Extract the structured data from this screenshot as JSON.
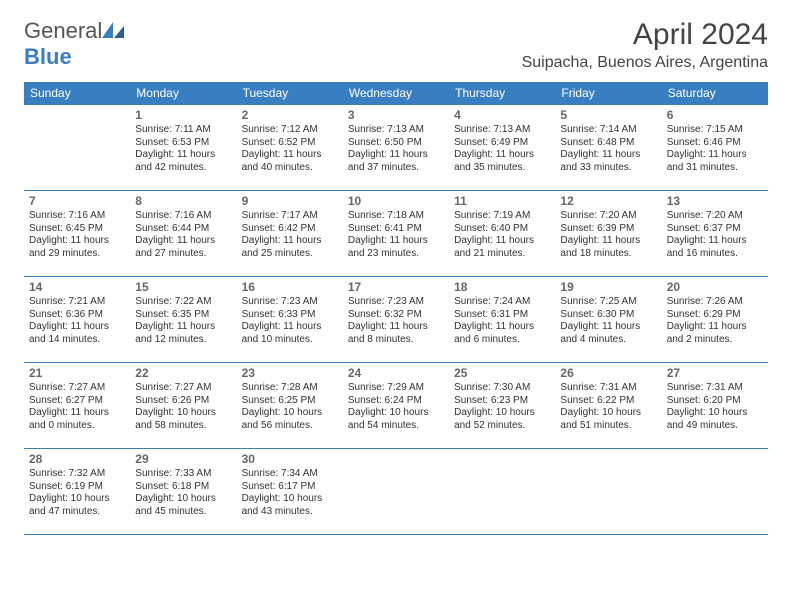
{
  "logo": {
    "text1": "General",
    "text2": "Blue",
    "icon_color": "#3a7ec2"
  },
  "title": "April 2024",
  "location": "Suipacha, Buenos Aires, Argentina",
  "header_bg": "#3a7ec2",
  "border_color": "#3a7ec2",
  "weekdays": [
    "Sunday",
    "Monday",
    "Tuesday",
    "Wednesday",
    "Thursday",
    "Friday",
    "Saturday"
  ],
  "weeks": [
    [
      null,
      {
        "d": "1",
        "sr": "7:11 AM",
        "ss": "6:53 PM",
        "dl": "11 hours and 42 minutes."
      },
      {
        "d": "2",
        "sr": "7:12 AM",
        "ss": "6:52 PM",
        "dl": "11 hours and 40 minutes."
      },
      {
        "d": "3",
        "sr": "7:13 AM",
        "ss": "6:50 PM",
        "dl": "11 hours and 37 minutes."
      },
      {
        "d": "4",
        "sr": "7:13 AM",
        "ss": "6:49 PM",
        "dl": "11 hours and 35 minutes."
      },
      {
        "d": "5",
        "sr": "7:14 AM",
        "ss": "6:48 PM",
        "dl": "11 hours and 33 minutes."
      },
      {
        "d": "6",
        "sr": "7:15 AM",
        "ss": "6:46 PM",
        "dl": "11 hours and 31 minutes."
      }
    ],
    [
      {
        "d": "7",
        "sr": "7:16 AM",
        "ss": "6:45 PM",
        "dl": "11 hours and 29 minutes."
      },
      {
        "d": "8",
        "sr": "7:16 AM",
        "ss": "6:44 PM",
        "dl": "11 hours and 27 minutes."
      },
      {
        "d": "9",
        "sr": "7:17 AM",
        "ss": "6:42 PM",
        "dl": "11 hours and 25 minutes."
      },
      {
        "d": "10",
        "sr": "7:18 AM",
        "ss": "6:41 PM",
        "dl": "11 hours and 23 minutes."
      },
      {
        "d": "11",
        "sr": "7:19 AM",
        "ss": "6:40 PM",
        "dl": "11 hours and 21 minutes."
      },
      {
        "d": "12",
        "sr": "7:20 AM",
        "ss": "6:39 PM",
        "dl": "11 hours and 18 minutes."
      },
      {
        "d": "13",
        "sr": "7:20 AM",
        "ss": "6:37 PM",
        "dl": "11 hours and 16 minutes."
      }
    ],
    [
      {
        "d": "14",
        "sr": "7:21 AM",
        "ss": "6:36 PM",
        "dl": "11 hours and 14 minutes."
      },
      {
        "d": "15",
        "sr": "7:22 AM",
        "ss": "6:35 PM",
        "dl": "11 hours and 12 minutes."
      },
      {
        "d": "16",
        "sr": "7:23 AM",
        "ss": "6:33 PM",
        "dl": "11 hours and 10 minutes."
      },
      {
        "d": "17",
        "sr": "7:23 AM",
        "ss": "6:32 PM",
        "dl": "11 hours and 8 minutes."
      },
      {
        "d": "18",
        "sr": "7:24 AM",
        "ss": "6:31 PM",
        "dl": "11 hours and 6 minutes."
      },
      {
        "d": "19",
        "sr": "7:25 AM",
        "ss": "6:30 PM",
        "dl": "11 hours and 4 minutes."
      },
      {
        "d": "20",
        "sr": "7:26 AM",
        "ss": "6:29 PM",
        "dl": "11 hours and 2 minutes."
      }
    ],
    [
      {
        "d": "21",
        "sr": "7:27 AM",
        "ss": "6:27 PM",
        "dl": "11 hours and 0 minutes."
      },
      {
        "d": "22",
        "sr": "7:27 AM",
        "ss": "6:26 PM",
        "dl": "10 hours and 58 minutes."
      },
      {
        "d": "23",
        "sr": "7:28 AM",
        "ss": "6:25 PM",
        "dl": "10 hours and 56 minutes."
      },
      {
        "d": "24",
        "sr": "7:29 AM",
        "ss": "6:24 PM",
        "dl": "10 hours and 54 minutes."
      },
      {
        "d": "25",
        "sr": "7:30 AM",
        "ss": "6:23 PM",
        "dl": "10 hours and 52 minutes."
      },
      {
        "d": "26",
        "sr": "7:31 AM",
        "ss": "6:22 PM",
        "dl": "10 hours and 51 minutes."
      },
      {
        "d": "27",
        "sr": "7:31 AM",
        "ss": "6:20 PM",
        "dl": "10 hours and 49 minutes."
      }
    ],
    [
      {
        "d": "28",
        "sr": "7:32 AM",
        "ss": "6:19 PM",
        "dl": "10 hours and 47 minutes."
      },
      {
        "d": "29",
        "sr": "7:33 AM",
        "ss": "6:18 PM",
        "dl": "10 hours and 45 minutes."
      },
      {
        "d": "30",
        "sr": "7:34 AM",
        "ss": "6:17 PM",
        "dl": "10 hours and 43 minutes."
      },
      null,
      null,
      null,
      null
    ]
  ],
  "labels": {
    "sunrise": "Sunrise: ",
    "sunset": "Sunset: ",
    "daylight": "Daylight: "
  }
}
